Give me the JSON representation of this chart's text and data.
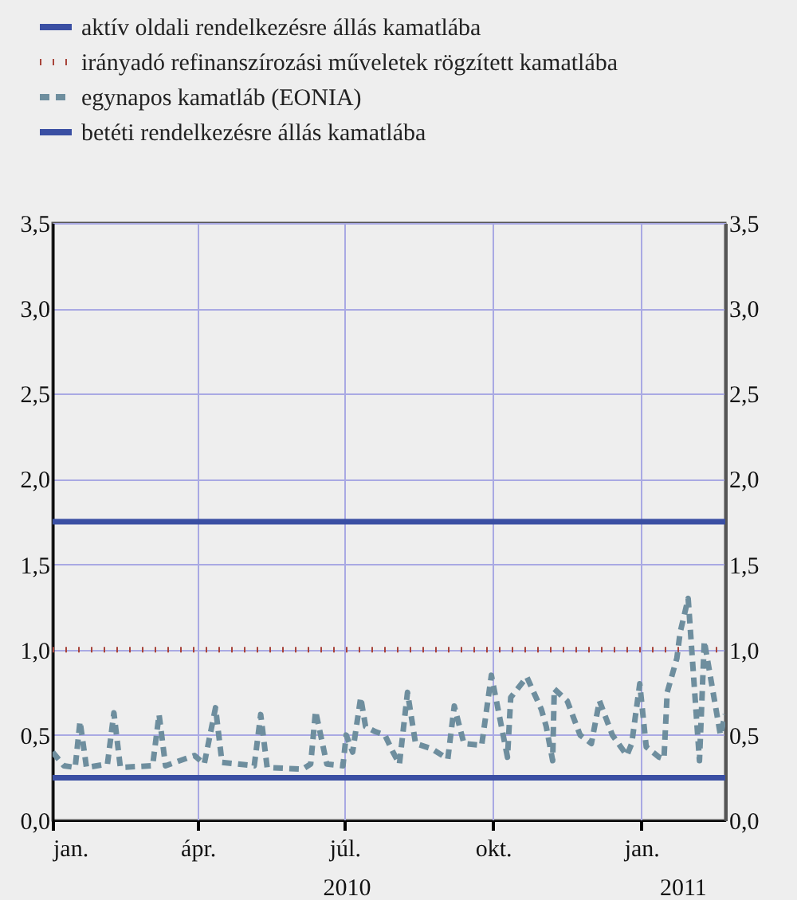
{
  "chart_data": {
    "type": "line",
    "xlim": [
      "2010-01-01",
      "2011-02-22"
    ],
    "xticks": [
      {
        "value": "2010-01-01",
        "label": "jan."
      },
      {
        "value": "2010-04-01",
        "label": "ápr."
      },
      {
        "value": "2010-07-01",
        "label": "júl."
      },
      {
        "value": "2010-10-01",
        "label": "okt."
      },
      {
        "value": "2011-01-01",
        "label": "jan."
      }
    ],
    "ylim": [
      0,
      3.5
    ],
    "yticks": [
      {
        "value": 0,
        "label": "0,0"
      },
      {
        "value": 0.5,
        "label": "0,5"
      },
      {
        "value": 1,
        "label": "1,0"
      },
      {
        "value": 1.5,
        "label": "1,5"
      },
      {
        "value": 2,
        "label": "2,0"
      },
      {
        "value": 2.5,
        "label": "2,5"
      },
      {
        "value": 3,
        "label": "3,0"
      },
      {
        "value": 3.5,
        "label": "3,5"
      }
    ],
    "y2lim": [
      0,
      3.5
    ],
    "y2ticks": [
      {
        "value": 0,
        "label": "0,0"
      },
      {
        "value": 0.5,
        "label": "0,5"
      },
      {
        "value": 1,
        "label": "1,0"
      },
      {
        "value": 1.5,
        "label": "1,5"
      },
      {
        "value": 2,
        "label": "2,0"
      },
      {
        "value": 2.5,
        "label": "2,5"
      },
      {
        "value": 3,
        "label": "3,0"
      },
      {
        "value": 3.5,
        "label": "3,5"
      }
    ],
    "grid": true,
    "legend": "top left",
    "annotations": [
      "2010",
      "2011"
    ],
    "series": [
      {
        "name": "aktív oldali rendelkezésre állás kamatlába",
        "color": "#3a4fa3",
        "line_style": "solid",
        "x": [
          "2010-01-01",
          "2011-02-22"
        ],
        "values": [
          1.75,
          1.75
        ]
      },
      {
        "name": "irányadó refinanszírozási műveletek rögzített kamatlába",
        "color": "#a8443a",
        "line_style": "dotted",
        "x": [
          "2010-01-01",
          "2011-02-22"
        ],
        "values": [
          1.0,
          1.0
        ]
      },
      {
        "name": "egynapos kamatláb (EONIA)",
        "color": "#6e8e9e",
        "line_style": "dashed",
        "x": [
          "2010-01-01",
          "2010-01-08",
          "2010-01-15",
          "2010-01-18",
          "2010-01-22",
          "2010-02-04",
          "2010-02-08",
          "2010-02-12",
          "2010-03-04",
          "2010-03-08",
          "2010-03-12",
          "2010-03-30",
          "2010-04-05",
          "2010-04-12",
          "2010-04-16",
          "2010-05-06",
          "2010-05-10",
          "2010-05-14",
          "2010-06-05",
          "2010-06-10",
          "2010-06-13",
          "2010-06-20",
          "2010-06-30",
          "2010-07-02",
          "2010-07-06",
          "2010-07-11",
          "2010-07-14",
          "2010-07-20",
          "2010-07-26",
          "2010-07-31",
          "2010-08-04",
          "2010-08-09",
          "2010-08-14",
          "2010-08-24",
          "2010-09-03",
          "2010-09-07",
          "2010-09-13",
          "2010-09-24",
          "2010-09-30",
          "2010-10-10",
          "2010-10-12",
          "2010-10-22",
          "2010-10-31",
          "2010-11-03",
          "2010-11-07",
          "2010-11-08",
          "2010-11-16",
          "2010-11-24",
          "2010-12-01",
          "2010-12-06",
          "2010-12-14",
          "2010-12-23",
          "2010-12-26",
          "2010-12-31",
          "2011-01-04",
          "2011-01-12",
          "2011-01-15",
          "2011-01-17",
          "2011-01-23",
          "2011-01-25",
          "2011-01-30",
          "2011-02-06",
          "2011-02-09",
          "2011-02-19",
          "2011-02-22"
        ],
        "values": [
          0.4,
          0.32,
          0.31,
          0.58,
          0.31,
          0.33,
          0.63,
          0.31,
          0.32,
          0.62,
          0.32,
          0.38,
          0.33,
          0.66,
          0.34,
          0.32,
          0.62,
          0.31,
          0.3,
          0.33,
          0.64,
          0.33,
          0.32,
          0.5,
          0.4,
          0.72,
          0.55,
          0.52,
          0.5,
          0.4,
          0.33,
          0.75,
          0.45,
          0.42,
          0.36,
          0.67,
          0.45,
          0.44,
          0.85,
          0.37,
          0.72,
          0.84,
          0.65,
          0.55,
          0.35,
          0.77,
          0.7,
          0.5,
          0.45,
          0.7,
          0.5,
          0.38,
          0.45,
          0.8,
          0.43,
          0.37,
          0.36,
          0.75,
          0.95,
          1.1,
          1.3,
          0.35,
          1.05,
          0.5,
          0.62
        ]
      },
      {
        "name": "betéti rendelkezésre állás kamatlába",
        "color": "#3a4fa3",
        "line_style": "solid",
        "x": [
          "2010-01-01",
          "2011-02-22"
        ],
        "values": [
          0.25,
          0.25
        ]
      }
    ]
  }
}
